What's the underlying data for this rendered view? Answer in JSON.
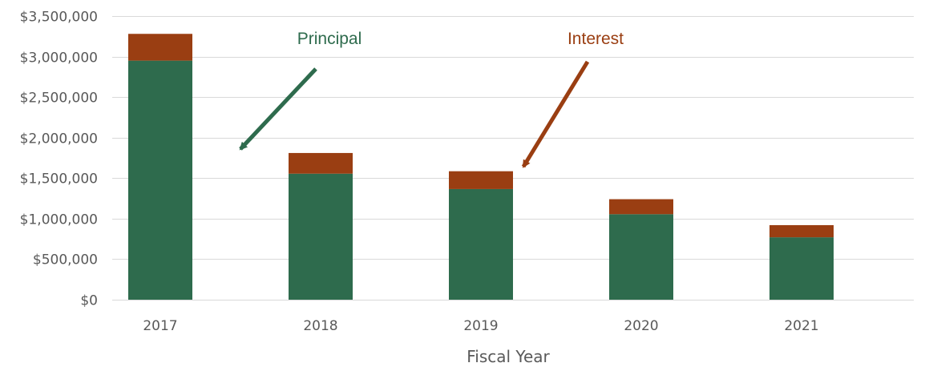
{
  "chart_data": {
    "type": "bar",
    "stacked": true,
    "categories": [
      "2017",
      "2018",
      "2019",
      "2020",
      "2021"
    ],
    "series": [
      {
        "values": [
          2950000,
          1555000,
          1365000,
          1055000,
          770000
        ],
        "color": "#2e6b4d"
      },
      {
        "values": [
          330000,
          255000,
          220000,
          185000,
          150000
        ],
        "color": "#9a3e12"
      }
    ],
    "xlabel": "Fiscal Year",
    "ylabel": "",
    "ylim": [
      0,
      3500000
    ],
    "yticks": [
      0,
      500000,
      1000000,
      1500000,
      2000000,
      2500000,
      3000000,
      3500000
    ],
    "ytick_labels": [
      "$0",
      "$500,000",
      "$1,000,000",
      "$1,500,000",
      "$2,000,000",
      "$2,500,000",
      "$3,000,000",
      "$3,500,000"
    ],
    "grid": true,
    "gridline_color": "#d9d9d9",
    "annotations": [
      {
        "text": "Principal",
        "color": "#2e6b4d",
        "points_to": "2017 principal segment"
      },
      {
        "text": "Interest",
        "color": "#9a3e12",
        "points_to": "2019 interest segment"
      }
    ]
  }
}
